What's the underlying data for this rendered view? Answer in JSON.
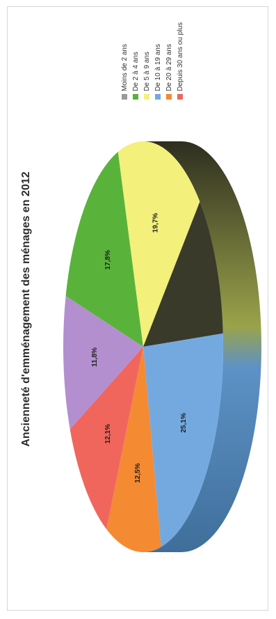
{
  "chart_data": {
    "type": "pie",
    "title": "Ancienneté d'emménagement des ménages en 2012",
    "categories": [
      "Moins de 2 ans",
      "De 2 à 4 ans",
      "De 5 à 9 ans",
      "De 10 à 19 ans",
      "De 20 à 29 ans",
      "Depuis 30 ans ou plus"
    ],
    "values": [
      12.8,
      17.8,
      19.7,
      25.1,
      12.5,
      12.1
    ],
    "labels": [
      "",
      "17,8%",
      "19,7%",
      "25,1%",
      "12,5%",
      "12,1%"
    ],
    "colors": [
      "#3a3a2a",
      "#59b33a",
      "#f3f07c",
      "#74a9e0",
      "#f48a32",
      "#f0665d"
    ],
    "extra_slice": {
      "label": "11,8%",
      "value": 11.8,
      "color": "#b38fcf"
    },
    "legend_placement": "right"
  },
  "legend": {
    "items": [
      {
        "label": "Moins de 2 ans",
        "color": "#9a9a9a"
      },
      {
        "label": "De 2 à 4 ans",
        "color": "#59b33a"
      },
      {
        "label": "De 5 à 9 ans",
        "color": "#f3f07c"
      },
      {
        "label": "De 10 à 19 ans",
        "color": "#74a9e0"
      },
      {
        "label": "De 20 à 29 ans",
        "color": "#f48a32"
      },
      {
        "label": "Depuis 30 ans ou plus",
        "color": "#f0665d"
      }
    ]
  }
}
